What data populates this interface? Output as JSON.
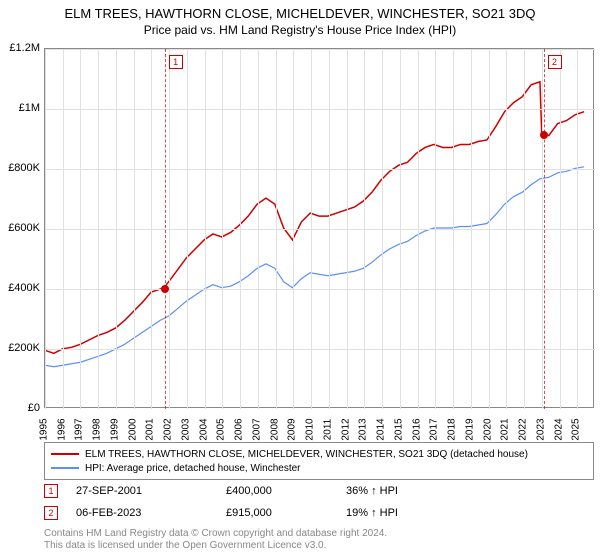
{
  "title": "ELM TREES, HAWTHORN CLOSE, MICHELDEVER, WINCHESTER, SO21 3DQ",
  "subtitle": "Price paid vs. HM Land Registry's House Price Index (HPI)",
  "chart": {
    "type": "line",
    "background_color": "#ffffff",
    "grid_color": "#e0e0e0",
    "border_color": "#888888",
    "xlim": [
      1995,
      2026
    ],
    "ylim": [
      0,
      1200000
    ],
    "ytick_step": 200000,
    "ytick_labels": [
      "£0",
      "£200K",
      "£400K",
      "£600K",
      "£800K",
      "£1M",
      "£1.2M"
    ],
    "xticks": [
      1995,
      1996,
      1997,
      1998,
      1999,
      2000,
      2001,
      2002,
      2003,
      2004,
      2005,
      2006,
      2007,
      2008,
      2009,
      2010,
      2011,
      2012,
      2013,
      2014,
      2015,
      2016,
      2017,
      2018,
      2019,
      2020,
      2021,
      2022,
      2023,
      2024,
      2025
    ],
    "series": [
      {
        "name": "subject",
        "label": "ELM TREES, HAWTHORN CLOSE, MICHELDEVER, WINCHESTER, SO21 3DQ (detached house)",
        "color": "#cc0000",
        "line_width": 1.5,
        "x": [
          1995,
          1995.5,
          1996,
          1996.5,
          1997,
          1997.5,
          1998,
          1998.5,
          1999,
          1999.5,
          2000,
          2000.5,
          2001,
          2001.5,
          2001.74,
          2002,
          2002.5,
          2003,
          2003.5,
          2004,
          2004.5,
          2005,
          2005.5,
          2006,
          2006.5,
          2007,
          2007.5,
          2008,
          2008.5,
          2009,
          2009.5,
          2010,
          2010.5,
          2011,
          2011.5,
          2012,
          2012.5,
          2013,
          2013.5,
          2014,
          2014.5,
          2015,
          2015.5,
          2016,
          2016.5,
          2017,
          2017.5,
          2018,
          2018.5,
          2019,
          2019.5,
          2020,
          2020.5,
          2021,
          2021.5,
          2022,
          2022.5,
          2023,
          2023.1,
          2023.5,
          2024,
          2024.5,
          2025,
          2025.5
        ],
        "y": [
          190000,
          180000,
          195000,
          200000,
          210000,
          225000,
          240000,
          250000,
          265000,
          290000,
          320000,
          350000,
          385000,
          395000,
          400000,
          420000,
          460000,
          500000,
          530000,
          560000,
          580000,
          570000,
          585000,
          610000,
          640000,
          680000,
          700000,
          680000,
          600000,
          560000,
          620000,
          650000,
          640000,
          640000,
          650000,
          660000,
          670000,
          690000,
          720000,
          760000,
          790000,
          810000,
          820000,
          850000,
          870000,
          880000,
          870000,
          870000,
          880000,
          880000,
          890000,
          895000,
          940000,
          990000,
          1020000,
          1040000,
          1080000,
          1090000,
          915000,
          910000,
          950000,
          960000,
          980000,
          990000
        ]
      },
      {
        "name": "hpi",
        "label": "HPI: Average price, detached house, Winchester",
        "color": "#5b8ff9",
        "line_width": 1.2,
        "x": [
          1995,
          1995.5,
          1996,
          1996.5,
          1997,
          1997.5,
          1998,
          1998.5,
          1999,
          1999.5,
          2000,
          2000.5,
          2001,
          2001.5,
          2002,
          2002.5,
          2003,
          2003.5,
          2004,
          2004.5,
          2005,
          2005.5,
          2006,
          2006.5,
          2007,
          2007.5,
          2008,
          2008.5,
          2009,
          2009.5,
          2010,
          2010.5,
          2011,
          2011.5,
          2012,
          2012.5,
          2013,
          2013.5,
          2014,
          2014.5,
          2015,
          2015.5,
          2016,
          2016.5,
          2017,
          2017.5,
          2018,
          2018.5,
          2019,
          2019.5,
          2020,
          2020.5,
          2021,
          2021.5,
          2022,
          2022.5,
          2023,
          2023.5,
          2024,
          2024.5,
          2025,
          2025.5
        ],
        "y": [
          140000,
          135000,
          140000,
          145000,
          150000,
          160000,
          170000,
          180000,
          195000,
          210000,
          230000,
          250000,
          270000,
          290000,
          305000,
          330000,
          355000,
          375000,
          395000,
          410000,
          400000,
          405000,
          420000,
          440000,
          465000,
          480000,
          465000,
          420000,
          400000,
          430000,
          450000,
          445000,
          440000,
          445000,
          450000,
          455000,
          465000,
          485000,
          510000,
          530000,
          545000,
          555000,
          575000,
          590000,
          600000,
          600000,
          600000,
          605000,
          605000,
          610000,
          615000,
          645000,
          680000,
          705000,
          720000,
          745000,
          765000,
          770000,
          785000,
          790000,
          800000,
          805000
        ]
      }
    ],
    "markers": [
      {
        "id": "1",
        "x": 2001.74,
        "y": 400000,
        "color": "#cc0000"
      },
      {
        "id": "2",
        "x": 2023.1,
        "y": 915000,
        "color": "#cc0000"
      }
    ]
  },
  "legend": {
    "items": [
      {
        "color": "#cc0000",
        "text": "ELM TREES, HAWTHORN CLOSE, MICHELDEVER, WINCHESTER, SO21 3DQ (detached house)"
      },
      {
        "color": "#5b8ff9",
        "text": "HPI: Average price, detached house, Winchester"
      }
    ]
  },
  "transactions": [
    {
      "id": "1",
      "date": "27-SEP-2001",
      "price": "£400,000",
      "diff": "36% ↑ HPI"
    },
    {
      "id": "2",
      "date": "06-FEB-2023",
      "price": "£915,000",
      "diff": "19% ↑ HPI"
    }
  ],
  "footer": {
    "line1": "Contains HM Land Registry data © Crown copyright and database right 2024.",
    "line2": "This data is licensed under the Open Government Licence v3.0."
  }
}
